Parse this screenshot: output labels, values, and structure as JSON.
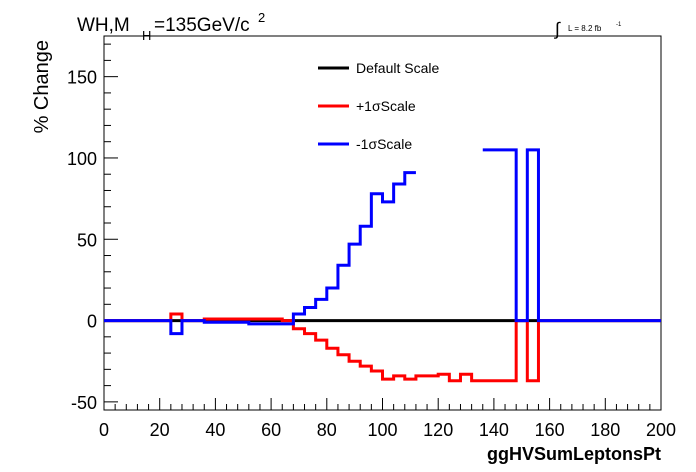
{
  "header": {
    "title_main": "WH,M",
    "title_sub": "H",
    "title_rest": "=135GeV/c",
    "title_sup": "2",
    "lumi_integral": "∫",
    "lumi_text": "L = 8.2 fb",
    "lumi_sup": "-1"
  },
  "chart_data": {
    "type": "line",
    "step": true,
    "xlabel": "ggHVSumLeptonsPt",
    "ylabel": "% Change",
    "xlim": [
      0,
      200
    ],
    "ylim": [
      -55,
      175
    ],
    "xticks": [
      0,
      20,
      40,
      60,
      80,
      100,
      120,
      140,
      160,
      180,
      200
    ],
    "yticks": [
      -50,
      0,
      50,
      100,
      150
    ],
    "grid": false,
    "legend_position": "top-center",
    "series": [
      {
        "name": "Default Scale",
        "color": "#000000",
        "x": [
          0,
          200
        ],
        "y": [
          0,
          0
        ]
      },
      {
        "name": "+1σScale",
        "color": "#ff0000",
        "x": [
          0,
          24,
          28,
          36,
          40,
          52,
          64,
          68,
          72,
          76,
          80,
          84,
          88,
          92,
          96,
          100,
          104,
          108,
          112,
          116,
          120,
          124,
          128,
          132,
          136,
          140,
          144,
          148,
          152,
          156,
          200
        ],
        "y": [
          0,
          4,
          0,
          1,
          1,
          1,
          0,
          -5,
          -8,
          -12,
          -17,
          -21,
          -25,
          -28,
          -31,
          -36,
          -34,
          -36,
          -34,
          -34,
          -33,
          -37,
          -33,
          -37,
          -37,
          -37,
          -37,
          0,
          -37,
          0,
          0
        ]
      },
      {
        "name": "-1σScale",
        "color": "#0000ff",
        "x": [
          0,
          24,
          28,
          36,
          40,
          52,
          64,
          68,
          72,
          76,
          80,
          84,
          88,
          92,
          96,
          100,
          104,
          108,
          112,
          116,
          120,
          124,
          128,
          132,
          136,
          140,
          144,
          148,
          152,
          156,
          200
        ],
        "y": [
          0,
          -8,
          0,
          -1,
          -1,
          -2,
          -2,
          4,
          8,
          13,
          20,
          34,
          47,
          58,
          78,
          73,
          84,
          91,
          null,
          null,
          null,
          null,
          null,
          null,
          105,
          105,
          105,
          0,
          105,
          0,
          0
        ]
      }
    ]
  }
}
